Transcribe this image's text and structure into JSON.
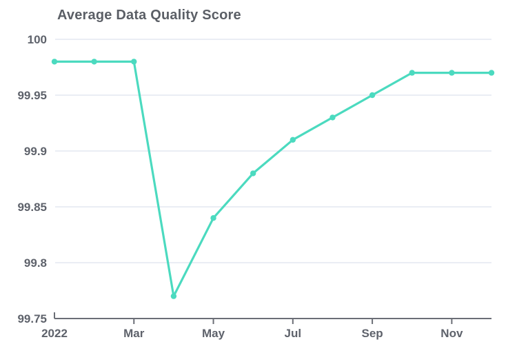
{
  "chart_data": {
    "type": "line",
    "title": "Average Data Quality Score",
    "xlabel": "",
    "ylabel": "",
    "x": [
      "2022-01",
      "2022-02",
      "2022-03",
      "2022-04",
      "2022-05",
      "2022-06",
      "2022-07",
      "2022-08",
      "2022-09",
      "2022-10",
      "2022-11",
      "2022-12"
    ],
    "series": [
      {
        "name": "Average Data Quality Score",
        "values": [
          99.98,
          99.98,
          99.98,
          99.77,
          99.84,
          99.88,
          99.91,
          99.93,
          99.95,
          99.97,
          99.97,
          99.97
        ]
      }
    ],
    "ylim": [
      99.75,
      100
    ],
    "grid": true,
    "legend": false,
    "y_ticks": [
      {
        "value": 100,
        "label": "100"
      },
      {
        "value": 99.95,
        "label": "99.95"
      },
      {
        "value": 99.9,
        "label": "99.9"
      },
      {
        "value": 99.85,
        "label": "99.85"
      },
      {
        "value": 99.8,
        "label": "99.8"
      },
      {
        "value": 99.75,
        "label": "99.75"
      }
    ],
    "x_ticks": [
      {
        "index": 0,
        "label": "2022"
      },
      {
        "index": 2,
        "label": "Mar"
      },
      {
        "index": 4,
        "label": "May"
      },
      {
        "index": 6,
        "label": "Jul"
      },
      {
        "index": 8,
        "label": "Sep"
      },
      {
        "index": 10,
        "label": "Nov"
      }
    ],
    "colors": {
      "line": "#4bdabf",
      "marker": "#4bdabf",
      "grid": "#e4e7f1",
      "axis": "#6b6e76",
      "tick_label": "#5e626b",
      "title": "#5b5f66"
    }
  }
}
